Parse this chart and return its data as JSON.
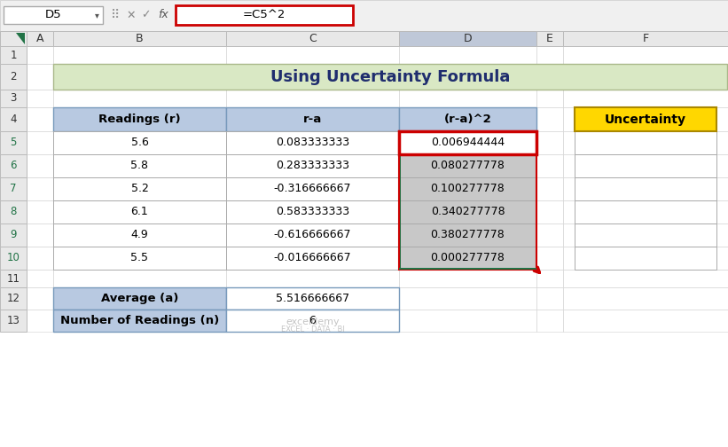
{
  "title": "Using Uncertainty Formula",
  "title_bg": "#d9e8c4",
  "title_border": "#aab88a",
  "formula_bar_text": "=C5^2",
  "cell_ref": "D5",
  "table_headers": [
    "Readings (r)",
    "r-a",
    "(r-a)^2"
  ],
  "readings": [
    5.6,
    5.8,
    5.2,
    6.1,
    4.9,
    5.5
  ],
  "r_minus_a": [
    "0.083333333",
    "0.283333333",
    "-0.316666667",
    "0.583333333",
    "-0.616666667",
    "-0.016666667"
  ],
  "r_minus_a_sq": [
    "0.006944444",
    "0.080277778",
    "0.100277778",
    "0.340277778",
    "0.380277778",
    "0.000277778"
  ],
  "average_label": "Average (a)",
  "average_value": "5.516666667",
  "n_label": "Number of Readings (n)",
  "n_value": "6",
  "uncertainty_label": "Uncertainty",
  "header_bg": "#b8c9e1",
  "row_bg_white": "#ffffff",
  "row_bg_gray": "#c8c8c8",
  "d5_bg": "#ffffff",
  "uncertainty_bg": "#ffd700",
  "bottom_header_bg": "#b8c9e1",
  "col_header_bg": "#e8e8e8",
  "col_header_bg_selected": "#bfc8d8",
  "row_header_selected_color": "#217346",
  "toolbar_bg": "#f0f0f0",
  "grid_bg": "#ffffff",
  "outer_bg": "#f0f0f0",
  "formula_border_color": "#cc0000",
  "d_col_border_color": "#cc0000",
  "d_col_outline_color": "#217346",
  "cell_border": "#d0d0d0",
  "table_border": "#888888",
  "row_nums": [
    "1",
    "2",
    "3",
    "4",
    "5",
    "6",
    "7",
    "8",
    "9",
    "10",
    "11",
    "12",
    "13"
  ]
}
